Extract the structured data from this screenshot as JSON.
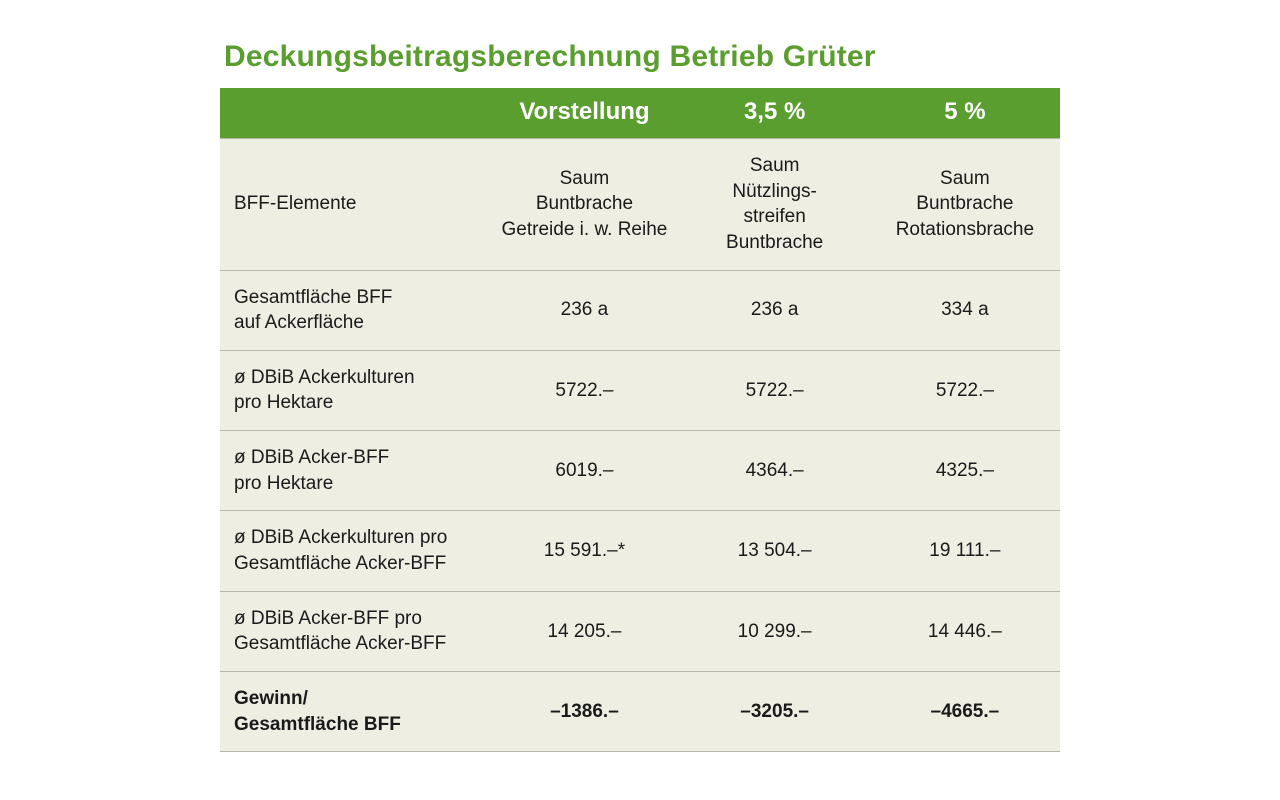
{
  "title": "Deckungsbeitragsberechnung Betrieb Grüter",
  "colors": {
    "accent_green": "#5a9e2f",
    "table_bg": "#efeee3",
    "row_border": "#b7b6aa",
    "text": "#1a1a1a",
    "background": "#ffffff"
  },
  "table": {
    "type": "table",
    "header": {
      "label": "",
      "col1": "Vorstellung",
      "col2": "3,5 %",
      "col3": "5 %"
    },
    "column_widths_percent": [
      32,
      22.6,
      22.6,
      22.6
    ],
    "header_fontsize": 24,
    "body_fontsize": 19,
    "rows": [
      {
        "label": "BFF-Elemente",
        "col1": "Saum\nBuntbrache\nGetreide i. w. Reihe",
        "col2": "Saum\nNützlings-\nstreifen\nBuntbrache",
        "col3": "Saum\nBuntbrache\nRotationsbrache",
        "bold": false
      },
      {
        "label": "Gesamtfläche BFF\nauf Ackerfläche",
        "col1": "236 a",
        "col2": "236 a",
        "col3": "334 a",
        "bold": false
      },
      {
        "label": "ø DBiB Ackerkulturen\npro Hektare",
        "col1": "5722.–",
        "col2": "5722.–",
        "col3": "5722.–",
        "bold": false
      },
      {
        "label": "ø DBiB Acker-BFF\npro Hektare",
        "col1": "6019.–",
        "col2": "4364.–",
        "col3": "4325.–",
        "bold": false
      },
      {
        "label": "ø DBiB Ackerkulturen pro\nGesamtfläche Acker-BFF",
        "col1": "15 591.–*",
        "col2": "13 504.–",
        "col3": "19 111.–",
        "bold": false
      },
      {
        "label": "ø DBiB Acker-BFF pro\nGesamtfläche Acker-BFF",
        "col1": "14 205.–",
        "col2": "10 299.–",
        "col3": "14 446.–",
        "bold": false
      },
      {
        "label": "Gewinn/\nGesamtfläche BFF",
        "col1": "–1386.–",
        "col2": "–3205.–",
        "col3": "–4665.–",
        "bold": true
      }
    ]
  }
}
